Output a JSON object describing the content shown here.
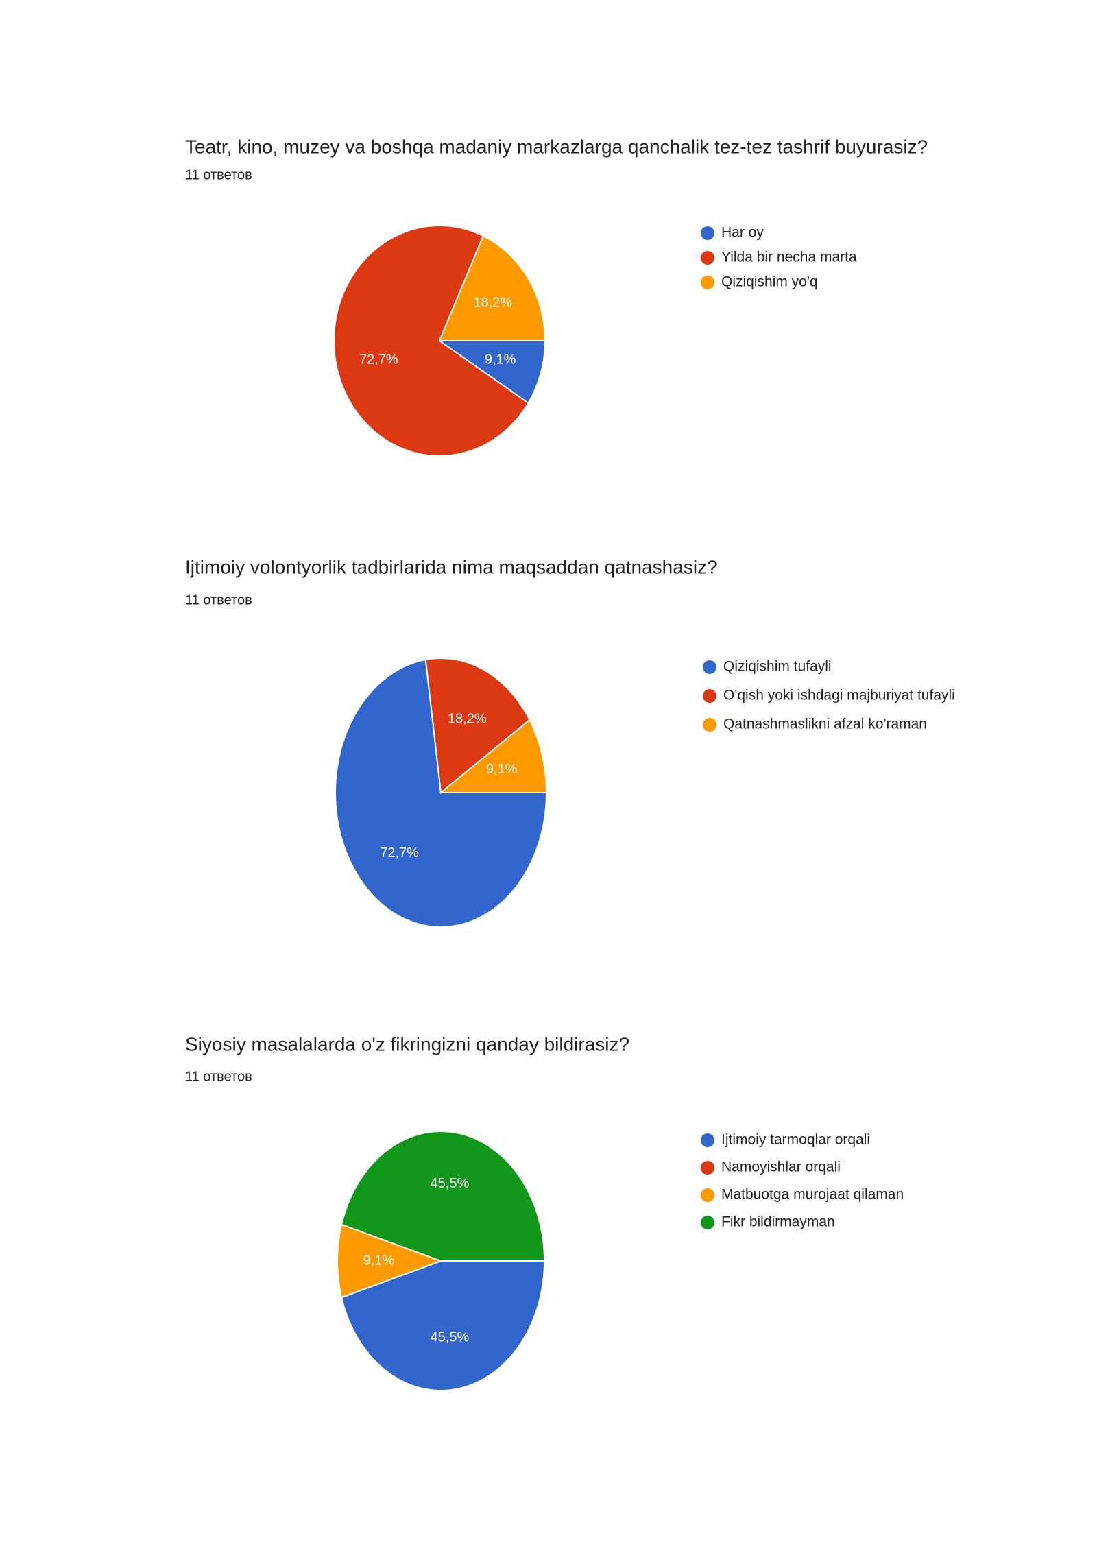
{
  "chart_data": [
    {
      "type": "pie",
      "title": "Teatr, kino, muzey va boshqa madaniy markazlarga qanchalik tez-tez tashrif buyurasiz?",
      "subtitle": "11 ответов",
      "categories": [
        "Har oy",
        "Yilda bir necha marta",
        "Qiziqishim yo'q"
      ],
      "values": [
        9.1,
        72.7,
        18.2
      ],
      "value_labels": [
        "9,1%",
        "72,7%",
        "18,2%"
      ],
      "colors": [
        "#3366cc",
        "#dc3912",
        "#ff9900"
      ]
    },
    {
      "type": "pie",
      "title": "Ijtimoiy volontyorlik tadbirlarida nima maqsaddan qatnashasiz?",
      "subtitle": "11 ответов",
      "categories": [
        "Qiziqishim tufayli",
        "O'qish yoki ishdagi majburiyat tufayli",
        "Qatnashmaslikni afzal ko'raman"
      ],
      "values": [
        72.7,
        18.2,
        9.1
      ],
      "value_labels": [
        "72,7%",
        "18,2%",
        "9,1%"
      ],
      "colors": [
        "#3366cc",
        "#dc3912",
        "#ff9900"
      ]
    },
    {
      "type": "pie",
      "title": "Siyosiy masalalarda o'z fikringizni qanday bildirasiz?",
      "subtitle": "11 ответов",
      "categories": [
        "Ijtimoiy tarmoqlar orqali",
        "Namoyishlar orqali",
        "Matbuotga murojaat qilaman",
        "Fikr bildirmayman"
      ],
      "values": [
        45.5,
        0,
        9.1,
        45.5
      ],
      "value_labels": [
        "45,5%",
        null,
        "9,1%",
        "45,5%"
      ],
      "colors": [
        "#3366cc",
        "#dc3912",
        "#ff9900",
        "#109618"
      ]
    }
  ]
}
